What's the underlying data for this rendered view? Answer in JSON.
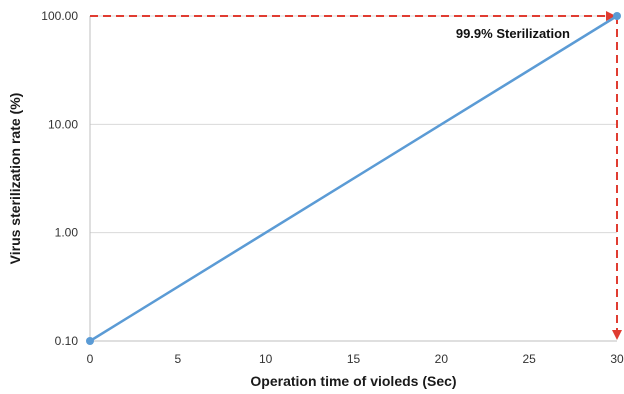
{
  "chart_data": {
    "type": "line",
    "xlabel": "Operation time of violeds (Sec)",
    "ylabel": "Virus sterilization rate (%)",
    "x_scale": "linear",
    "y_scale": "log",
    "xlim": [
      0,
      30
    ],
    "ylim": [
      0.1,
      100
    ],
    "x_ticks": [
      0,
      5,
      10,
      15,
      20,
      25,
      30
    ],
    "x_tick_labels": [
      "0",
      "5",
      "10",
      "15",
      "20",
      "25",
      "30"
    ],
    "y_ticks": [
      0.1,
      1,
      10,
      100
    ],
    "y_tick_labels": [
      "0.10",
      "1.00",
      "10.00",
      "100.00"
    ],
    "grid": "horizontal",
    "series": [
      {
        "x": [
          0,
          30
        ],
        "y": [
          0.1,
          100
        ],
        "color": "#5b9bd5"
      }
    ],
    "annotations": [
      {
        "text": "99.9% Sterilization",
        "x": 30,
        "y": 100,
        "arrow_color": "#e03c31"
      }
    ]
  }
}
